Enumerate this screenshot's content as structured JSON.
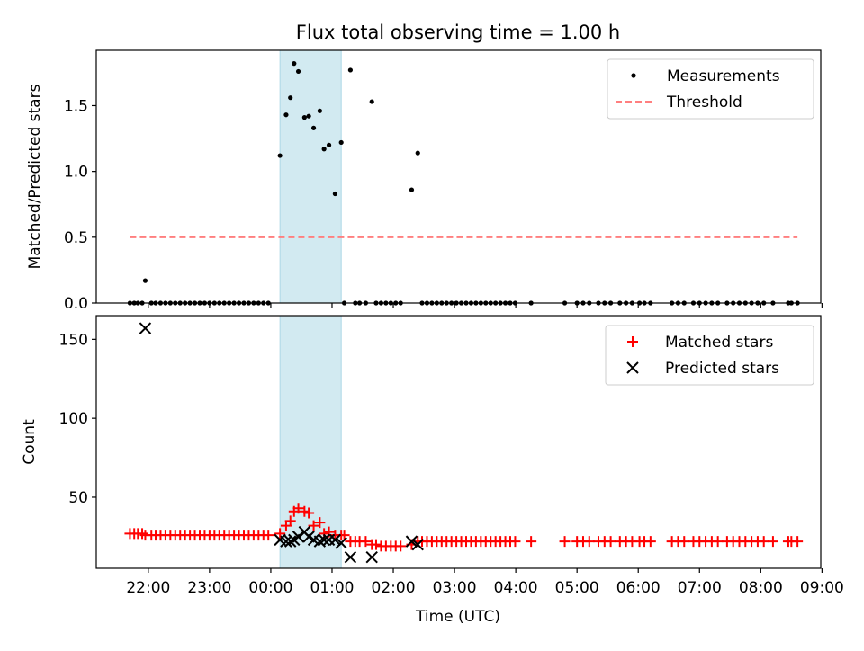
{
  "chart_data": [
    {
      "type": "scatter",
      "title": "Flux total observing time = 1.00 h",
      "xlabel": "",
      "ylabel": "Matched/Predicted stars",
      "ylim": [
        0,
        1.92
      ],
      "yticks": [
        0.0,
        0.5,
        1.0,
        1.5
      ],
      "ytick_labels": [
        "0.0",
        "0.5",
        "1.0",
        "1.5"
      ],
      "x_unit": "hours since 00:00 UTC",
      "xlim": [
        -2.85,
        8.98
      ],
      "shaded_interval": [
        0.15,
        1.15
      ],
      "shaded_color": "#add8e6",
      "legend": {
        "placement": "top-right",
        "entries": [
          "Measurements",
          "Threshold"
        ]
      },
      "series": [
        {
          "name": "Measurements",
          "marker": "dot",
          "color": "#000000",
          "points": [
            [
              -2.3,
              0
            ],
            [
              -2.23,
              0
            ],
            [
              -2.17,
              0
            ],
            [
              -2.1,
              0
            ],
            [
              -2.05,
              0.17
            ],
            [
              -1.95,
              0
            ],
            [
              -1.88,
              0
            ],
            [
              -1.8,
              0
            ],
            [
              -1.72,
              0
            ],
            [
              -1.64,
              0
            ],
            [
              -1.56,
              0
            ],
            [
              -1.48,
              0
            ],
            [
              -1.4,
              0
            ],
            [
              -1.32,
              0
            ],
            [
              -1.24,
              0
            ],
            [
              -1.16,
              0
            ],
            [
              -1.08,
              0
            ],
            [
              -1.0,
              0
            ],
            [
              -0.92,
              0
            ],
            [
              -0.84,
              0
            ],
            [
              -0.76,
              0
            ],
            [
              -0.68,
              0
            ],
            [
              -0.6,
              0
            ],
            [
              -0.52,
              0
            ],
            [
              -0.44,
              0
            ],
            [
              -0.36,
              0
            ],
            [
              -0.28,
              0
            ],
            [
              -0.2,
              0
            ],
            [
              -0.12,
              0
            ],
            [
              -0.04,
              0
            ],
            [
              0.15,
              1.12
            ],
            [
              0.25,
              1.43
            ],
            [
              0.32,
              1.56
            ],
            [
              0.38,
              1.82
            ],
            [
              0.45,
              1.76
            ],
            [
              0.55,
              1.41
            ],
            [
              0.62,
              1.42
            ],
            [
              0.7,
              1.33
            ],
            [
              0.8,
              1.46
            ],
            [
              0.87,
              1.17
            ],
            [
              0.95,
              1.2
            ],
            [
              1.05,
              0.83
            ],
            [
              1.15,
              1.22
            ],
            [
              1.2,
              0
            ],
            [
              1.3,
              1.77
            ],
            [
              1.38,
              0
            ],
            [
              1.45,
              0
            ],
            [
              1.55,
              0
            ],
            [
              1.65,
              1.53
            ],
            [
              1.72,
              0
            ],
            [
              1.8,
              0
            ],
            [
              1.88,
              0
            ],
            [
              1.96,
              0
            ],
            [
              2.04,
              0
            ],
            [
              2.12,
              0
            ],
            [
              2.3,
              0.86
            ],
            [
              2.4,
              1.14
            ],
            [
              2.47,
              0
            ],
            [
              2.55,
              0
            ],
            [
              2.63,
              0
            ],
            [
              2.71,
              0
            ],
            [
              2.79,
              0
            ],
            [
              2.87,
              0
            ],
            [
              2.95,
              0
            ],
            [
              3.03,
              0
            ],
            [
              3.11,
              0
            ],
            [
              3.19,
              0
            ],
            [
              3.27,
              0
            ],
            [
              3.35,
              0
            ],
            [
              3.43,
              0
            ],
            [
              3.51,
              0
            ],
            [
              3.59,
              0
            ],
            [
              3.67,
              0
            ],
            [
              3.75,
              0
            ],
            [
              3.83,
              0
            ],
            [
              3.91,
              0
            ],
            [
              3.99,
              0
            ],
            [
              4.25,
              0
            ],
            [
              4.8,
              0
            ],
            [
              5.0,
              0
            ],
            [
              5.1,
              0
            ],
            [
              5.2,
              0
            ],
            [
              5.35,
              0
            ],
            [
              5.45,
              0
            ],
            [
              5.55,
              0
            ],
            [
              5.7,
              0
            ],
            [
              5.8,
              0
            ],
            [
              5.9,
              0
            ],
            [
              6.02,
              0
            ],
            [
              6.1,
              0
            ],
            [
              6.2,
              0
            ],
            [
              6.55,
              0
            ],
            [
              6.65,
              0
            ],
            [
              6.75,
              0
            ],
            [
              6.9,
              0
            ],
            [
              7.0,
              0
            ],
            [
              7.1,
              0
            ],
            [
              7.2,
              0
            ],
            [
              7.3,
              0
            ],
            [
              7.45,
              0
            ],
            [
              7.55,
              0
            ],
            [
              7.65,
              0
            ],
            [
              7.75,
              0
            ],
            [
              7.85,
              0
            ],
            [
              7.95,
              0
            ],
            [
              8.05,
              0
            ],
            [
              8.2,
              0
            ],
            [
              8.45,
              0
            ],
            [
              8.5,
              0
            ],
            [
              8.6,
              0
            ]
          ]
        },
        {
          "name": "Threshold",
          "marker": "dashed-line",
          "color": "#ff7f7f",
          "points": [
            [
              -2.3,
              0.5
            ],
            [
              8.6,
              0.5
            ]
          ]
        }
      ]
    },
    {
      "type": "scatter",
      "title": "",
      "xlabel": "Time (UTC)",
      "ylabel": "Count",
      "ylim": [
        5,
        165
      ],
      "yticks": [
        50,
        100,
        150
      ],
      "ytick_labels": [
        "50",
        "100",
        "150"
      ],
      "x_unit": "hours since 00:00 UTC",
      "xlim": [
        -2.85,
        8.98
      ],
      "xticks": [
        -2,
        -1,
        0,
        1,
        2,
        3,
        4,
        5,
        6,
        7,
        8,
        9
      ],
      "xtick_labels": [
        "22:00",
        "23:00",
        "00:00",
        "01:00",
        "02:00",
        "03:00",
        "04:00",
        "05:00",
        "06:00",
        "07:00",
        "08:00",
        "09:00"
      ],
      "shaded_interval": [
        0.15,
        1.15
      ],
      "shaded_color": "#add8e6",
      "legend": {
        "placement": "top-right",
        "entries": [
          "Matched stars",
          "Predicted stars"
        ]
      },
      "series": [
        {
          "name": "Matched stars",
          "marker": "plus",
          "color": "#ff0000",
          "points": [
            [
              -2.3,
              27
            ],
            [
              -2.23,
              27
            ],
            [
              -2.17,
              27
            ],
            [
              -2.1,
              27
            ],
            [
              -2.05,
              26
            ],
            [
              -1.95,
              26
            ],
            [
              -1.88,
              26
            ],
            [
              -1.8,
              26
            ],
            [
              -1.72,
              26
            ],
            [
              -1.64,
              26
            ],
            [
              -1.56,
              26
            ],
            [
              -1.48,
              26
            ],
            [
              -1.4,
              26
            ],
            [
              -1.32,
              26
            ],
            [
              -1.24,
              26
            ],
            [
              -1.16,
              26
            ],
            [
              -1.08,
              26
            ],
            [
              -1.0,
              26
            ],
            [
              -0.92,
              26
            ],
            [
              -0.84,
              26
            ],
            [
              -0.76,
              26
            ],
            [
              -0.68,
              26
            ],
            [
              -0.6,
              26
            ],
            [
              -0.52,
              26
            ],
            [
              -0.44,
              26
            ],
            [
              -0.36,
              26
            ],
            [
              -0.28,
              26
            ],
            [
              -0.2,
              26
            ],
            [
              -0.12,
              26
            ],
            [
              -0.04,
              26
            ],
            [
              0.15,
              27
            ],
            [
              0.25,
              32
            ],
            [
              0.32,
              35
            ],
            [
              0.38,
              41
            ],
            [
              0.45,
              43
            ],
            [
              0.55,
              41
            ],
            [
              0.62,
              40
            ],
            [
              0.7,
              32
            ],
            [
              0.8,
              34
            ],
            [
              0.87,
              27
            ],
            [
              0.95,
              28
            ],
            [
              1.05,
              26
            ],
            [
              1.15,
              26
            ],
            [
              1.2,
              26
            ],
            [
              1.3,
              22
            ],
            [
              1.38,
              22
            ],
            [
              1.45,
              22
            ],
            [
              1.55,
              22
            ],
            [
              1.65,
              20
            ],
            [
              1.72,
              20
            ],
            [
              1.8,
              19
            ],
            [
              1.88,
              19
            ],
            [
              1.96,
              19
            ],
            [
              2.04,
              19
            ],
            [
              2.12,
              19
            ],
            [
              2.3,
              20
            ],
            [
              2.4,
              22
            ],
            [
              2.47,
              22
            ],
            [
              2.55,
              22
            ],
            [
              2.63,
              22
            ],
            [
              2.71,
              22
            ],
            [
              2.79,
              22
            ],
            [
              2.87,
              22
            ],
            [
              2.95,
              22
            ],
            [
              3.03,
              22
            ],
            [
              3.11,
              22
            ],
            [
              3.19,
              22
            ],
            [
              3.27,
              22
            ],
            [
              3.35,
              22
            ],
            [
              3.43,
              22
            ],
            [
              3.51,
              22
            ],
            [
              3.59,
              22
            ],
            [
              3.67,
              22
            ],
            [
              3.75,
              22
            ],
            [
              3.83,
              22
            ],
            [
              3.91,
              22
            ],
            [
              3.99,
              22
            ],
            [
              4.25,
              22
            ],
            [
              4.8,
              22
            ],
            [
              5.0,
              22
            ],
            [
              5.1,
              22
            ],
            [
              5.2,
              22
            ],
            [
              5.35,
              22
            ],
            [
              5.45,
              22
            ],
            [
              5.55,
              22
            ],
            [
              5.7,
              22
            ],
            [
              5.8,
              22
            ],
            [
              5.9,
              22
            ],
            [
              6.02,
              22
            ],
            [
              6.1,
              22
            ],
            [
              6.2,
              22
            ],
            [
              6.55,
              22
            ],
            [
              6.65,
              22
            ],
            [
              6.75,
              22
            ],
            [
              6.9,
              22
            ],
            [
              7.0,
              22
            ],
            [
              7.1,
              22
            ],
            [
              7.2,
              22
            ],
            [
              7.3,
              22
            ],
            [
              7.45,
              22
            ],
            [
              7.55,
              22
            ],
            [
              7.65,
              22
            ],
            [
              7.75,
              22
            ],
            [
              7.85,
              22
            ],
            [
              7.95,
              22
            ],
            [
              8.05,
              22
            ],
            [
              8.2,
              22
            ],
            [
              8.45,
              22
            ],
            [
              8.5,
              22
            ],
            [
              8.6,
              22
            ]
          ]
        },
        {
          "name": "Predicted stars",
          "marker": "x",
          "color": "#000000",
          "points": [
            [
              -2.05,
              157
            ],
            [
              0.15,
              23
            ],
            [
              0.25,
              22
            ],
            [
              0.32,
              22
            ],
            [
              0.38,
              23
            ],
            [
              0.45,
              25
            ],
            [
              0.55,
              28
            ],
            [
              0.62,
              25
            ],
            [
              0.7,
              23
            ],
            [
              0.8,
              22
            ],
            [
              0.87,
              23
            ],
            [
              0.95,
              23
            ],
            [
              1.05,
              23
            ],
            [
              1.15,
              21
            ],
            [
              1.3,
              12
            ],
            [
              1.65,
              12
            ],
            [
              2.3,
              22
            ],
            [
              2.4,
              20
            ]
          ]
        }
      ]
    }
  ]
}
